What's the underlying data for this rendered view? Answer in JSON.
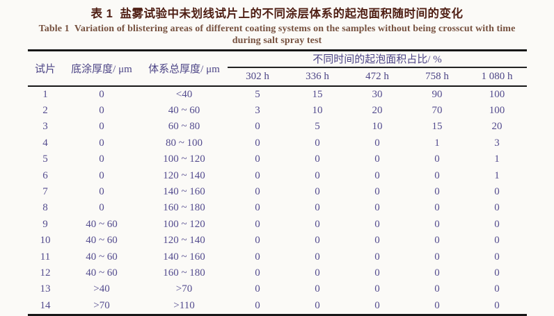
{
  "title": {
    "zh": "表 1  盐雾试验中未划线试片上的不同涂层体系的起泡面积随时间的变化",
    "en_line1": "Table 1  Variation of blistering areas of different coating systems on the samples without being crosscut with time",
    "en_line2": "during salt spray test"
  },
  "colors": {
    "background": "#fbfaf7",
    "title_zh": "#4f1f14",
    "title_en": "#76513f",
    "table_text": "#534b8e",
    "rule": "#161616"
  },
  "table": {
    "headers": {
      "sample": "试片",
      "primer_thickness": "底涂厚度/ μm",
      "total_thickness": "体系总厚度/ μm",
      "span": "不同时间的起泡面积占比/ %",
      "times": [
        "302 h",
        "336 h",
        "472 h",
        "758 h",
        "1 080 h"
      ]
    },
    "rows": [
      [
        "1",
        "0",
        "<40",
        "5",
        "15",
        "30",
        "90",
        "100"
      ],
      [
        "2",
        "0",
        "40 ~ 60",
        "3",
        "10",
        "20",
        "70",
        "100"
      ],
      [
        "3",
        "0",
        "60 ~ 80",
        "0",
        "5",
        "10",
        "15",
        "20"
      ],
      [
        "4",
        "0",
        "80 ~ 100",
        "0",
        "0",
        "0",
        "1",
        "3"
      ],
      [
        "5",
        "0",
        "100 ~ 120",
        "0",
        "0",
        "0",
        "0",
        "1"
      ],
      [
        "6",
        "0",
        "120 ~ 140",
        "0",
        "0",
        "0",
        "0",
        "1"
      ],
      [
        "7",
        "0",
        "140 ~ 160",
        "0",
        "0",
        "0",
        "0",
        "0"
      ],
      [
        "8",
        "0",
        "160 ~ 180",
        "0",
        "0",
        "0",
        "0",
        "0"
      ],
      [
        "9",
        "40 ~ 60",
        "100 ~ 120",
        "0",
        "0",
        "0",
        "0",
        "0"
      ],
      [
        "10",
        "40 ~ 60",
        "120 ~ 140",
        "0",
        "0",
        "0",
        "0",
        "0"
      ],
      [
        "11",
        "40 ~ 60",
        "140 ~ 160",
        "0",
        "0",
        "0",
        "0",
        "0"
      ],
      [
        "12",
        "40 ~ 60",
        "160 ~ 180",
        "0",
        "0",
        "0",
        "0",
        "0"
      ],
      [
        "13",
        ">40",
        ">70",
        "0",
        "0",
        "0",
        "0",
        "0"
      ],
      [
        "14",
        ">70",
        ">110",
        "0",
        "0",
        "0",
        "0",
        "0"
      ]
    ]
  }
}
